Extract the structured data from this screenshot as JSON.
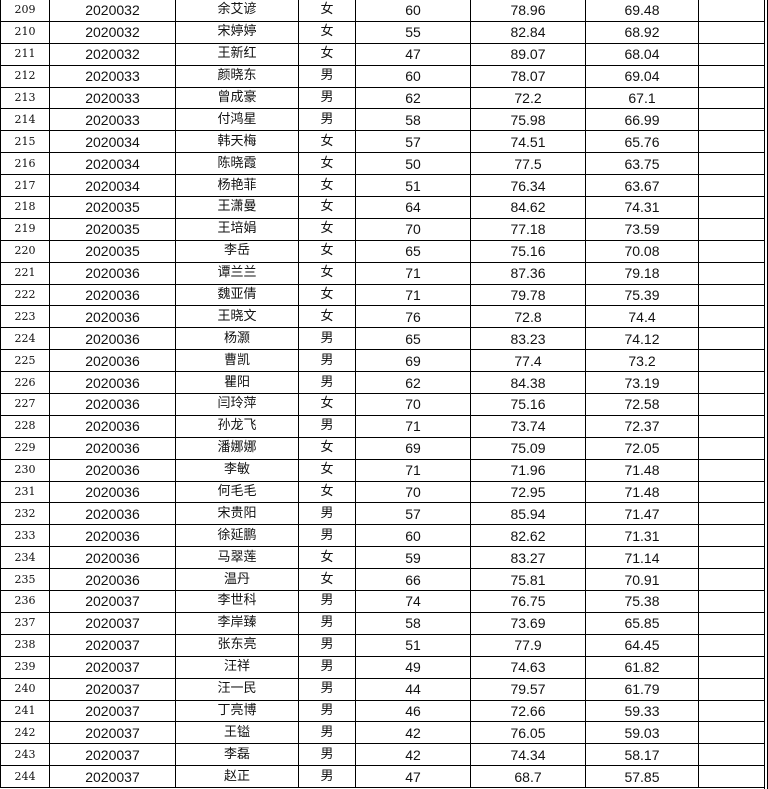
{
  "rows": [
    [
      "209",
      "2020032",
      "余艾谚",
      "女",
      "60",
      "78.96",
      "69.48",
      ""
    ],
    [
      "210",
      "2020032",
      "宋婷婷",
      "女",
      "55",
      "82.84",
      "68.92",
      ""
    ],
    [
      "211",
      "2020032",
      "王新红",
      "女",
      "47",
      "89.07",
      "68.04",
      ""
    ],
    [
      "212",
      "2020033",
      "颜晓东",
      "男",
      "60",
      "78.07",
      "69.04",
      ""
    ],
    [
      "213",
      "2020033",
      "曾成豪",
      "男",
      "62",
      "72.2",
      "67.1",
      ""
    ],
    [
      "214",
      "2020033",
      "付鸿星",
      "男",
      "58",
      "75.98",
      "66.99",
      ""
    ],
    [
      "215",
      "2020034",
      "韩天梅",
      "女",
      "57",
      "74.51",
      "65.76",
      ""
    ],
    [
      "216",
      "2020034",
      "陈晓霞",
      "女",
      "50",
      "77.5",
      "63.75",
      ""
    ],
    [
      "217",
      "2020034",
      "杨艳菲",
      "女",
      "51",
      "76.34",
      "63.67",
      ""
    ],
    [
      "218",
      "2020035",
      "王潇曼",
      "女",
      "64",
      "84.62",
      "74.31",
      ""
    ],
    [
      "219",
      "2020035",
      "王培娟",
      "女",
      "70",
      "77.18",
      "73.59",
      ""
    ],
    [
      "220",
      "2020035",
      "李岳",
      "女",
      "65",
      "75.16",
      "70.08",
      ""
    ],
    [
      "221",
      "2020036",
      "谭兰兰",
      "女",
      "71",
      "87.36",
      "79.18",
      ""
    ],
    [
      "222",
      "2020036",
      "魏亚倩",
      "女",
      "71",
      "79.78",
      "75.39",
      ""
    ],
    [
      "223",
      "2020036",
      "王晓文",
      "女",
      "76",
      "72.8",
      "74.4",
      ""
    ],
    [
      "224",
      "2020036",
      "杨灏",
      "男",
      "65",
      "83.23",
      "74.12",
      ""
    ],
    [
      "225",
      "2020036",
      "曹凯",
      "男",
      "69",
      "77.4",
      "73.2",
      ""
    ],
    [
      "226",
      "2020036",
      "瞿阳",
      "男",
      "62",
      "84.38",
      "73.19",
      ""
    ],
    [
      "227",
      "2020036",
      "闫玲萍",
      "女",
      "70",
      "75.16",
      "72.58",
      ""
    ],
    [
      "228",
      "2020036",
      "孙龙飞",
      "男",
      "71",
      "73.74",
      "72.37",
      ""
    ],
    [
      "229",
      "2020036",
      "潘娜娜",
      "女",
      "69",
      "75.09",
      "72.05",
      ""
    ],
    [
      "230",
      "2020036",
      "李敏",
      "女",
      "71",
      "71.96",
      "71.48",
      ""
    ],
    [
      "231",
      "2020036",
      "何毛毛",
      "女",
      "70",
      "72.95",
      "71.48",
      ""
    ],
    [
      "232",
      "2020036",
      "宋贵阳",
      "男",
      "57",
      "85.94",
      "71.47",
      ""
    ],
    [
      "233",
      "2020036",
      "徐延鹏",
      "男",
      "60",
      "82.62",
      "71.31",
      ""
    ],
    [
      "234",
      "2020036",
      "马翠莲",
      "女",
      "59",
      "83.27",
      "71.14",
      ""
    ],
    [
      "235",
      "2020036",
      "温丹",
      "女",
      "66",
      "75.81",
      "70.91",
      ""
    ],
    [
      "236",
      "2020037",
      "李世科",
      "男",
      "74",
      "76.75",
      "75.38",
      ""
    ],
    [
      "237",
      "2020037",
      "李岸臻",
      "男",
      "58",
      "73.69",
      "65.85",
      ""
    ],
    [
      "238",
      "2020037",
      "张东亮",
      "男",
      "51",
      "77.9",
      "64.45",
      ""
    ],
    [
      "239",
      "2020037",
      "汪祥",
      "男",
      "49",
      "74.63",
      "61.82",
      ""
    ],
    [
      "240",
      "2020037",
      "汪一民",
      "男",
      "44",
      "79.57",
      "61.79",
      ""
    ],
    [
      "241",
      "2020037",
      "丁亮博",
      "男",
      "46",
      "72.66",
      "59.33",
      ""
    ],
    [
      "242",
      "2020037",
      "王镒",
      "男",
      "42",
      "76.05",
      "59.03",
      ""
    ],
    [
      "243",
      "2020037",
      "李磊",
      "男",
      "42",
      "74.34",
      "58.17",
      ""
    ],
    [
      "244",
      "2020037",
      "赵正",
      "男",
      "47",
      "68.7",
      "57.85",
      ""
    ]
  ]
}
